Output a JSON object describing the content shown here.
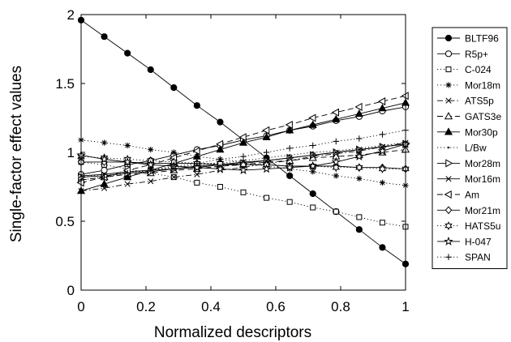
{
  "chart_data": {
    "type": "line",
    "title": "",
    "xlabel": "Normalized descriptors",
    "ylabel": "Single-factor effect values",
    "xlim": [
      0,
      1
    ],
    "ylim": [
      0,
      2
    ],
    "x_ticks": [
      "0",
      "0.2",
      "0.4",
      "0.6",
      "0.8",
      "1"
    ],
    "y_ticks": [
      "0",
      "0.5",
      "1",
      "1.5",
      "2"
    ],
    "grid": false,
    "legend_position": "right",
    "x": [
      0,
      0.0714,
      0.1429,
      0.2143,
      0.2857,
      0.3571,
      0.4286,
      0.5,
      0.5714,
      0.6429,
      0.7143,
      0.7857,
      0.8571,
      0.9286,
      1.0
    ],
    "series": [
      {
        "name": "BLTF96",
        "marker": "filled-circle",
        "line": "solid",
        "values": [
          1.96,
          1.84,
          1.72,
          1.6,
          1.47,
          1.34,
          1.22,
          1.09,
          0.96,
          0.83,
          0.7,
          0.57,
          0.44,
          0.31,
          0.19
        ]
      },
      {
        "name": "R5p+",
        "marker": "open-circle",
        "line": "solid",
        "values": [
          0.84,
          0.87,
          0.91,
          0.94,
          0.98,
          1.02,
          1.05,
          1.09,
          1.12,
          1.16,
          1.19,
          1.23,
          1.26,
          1.3,
          1.33
        ]
      },
      {
        "name": "C-024",
        "marker": "open-square",
        "line": "dotted",
        "values": [
          0.93,
          0.91,
          0.88,
          0.85,
          0.82,
          0.78,
          0.75,
          0.71,
          0.67,
          0.64,
          0.6,
          0.57,
          0.53,
          0.49,
          0.46
        ]
      },
      {
        "name": "Mor18m",
        "marker": "asterisk",
        "line": "dotted",
        "values": [
          1.09,
          1.07,
          1.05,
          1.02,
          1.0,
          0.97,
          0.95,
          0.93,
          0.9,
          0.88,
          0.86,
          0.83,
          0.81,
          0.78,
          0.76
        ]
      },
      {
        "name": "ATS5p",
        "marker": "x",
        "line": "dashdot",
        "values": [
          0.72,
          0.74,
          0.77,
          0.79,
          0.82,
          0.84,
          0.87,
          0.89,
          0.92,
          0.94,
          0.97,
          0.99,
          1.01,
          1.04,
          1.07
        ]
      },
      {
        "name": "GATS3e",
        "marker": "open-triangle-up",
        "line": "dashed",
        "values": [
          0.8,
          0.82,
          0.84,
          0.85,
          0.87,
          0.88,
          0.9,
          0.91,
          0.93,
          0.94,
          0.96,
          0.97,
          0.98,
          1.0,
          1.02
        ]
      },
      {
        "name": "Mor30p",
        "marker": "filled-triangle-up",
        "line": "solid",
        "values": [
          0.72,
          0.77,
          0.82,
          0.87,
          0.92,
          0.97,
          1.02,
          1.07,
          1.11,
          1.16,
          1.2,
          1.24,
          1.28,
          1.32,
          1.36
        ]
      },
      {
        "name": "L/Bw",
        "marker": "dot",
        "line": "dotted",
        "values": [
          0.82,
          0.84,
          0.86,
          0.87,
          0.89,
          0.91,
          0.92,
          0.94,
          0.96,
          0.98,
          1.0,
          1.01,
          1.03,
          1.05,
          1.07
        ]
      },
      {
        "name": "Mor28m",
        "marker": "open-triangle-right",
        "line": "solid",
        "values": [
          0.82,
          0.83,
          0.85,
          0.86,
          0.88,
          0.89,
          0.91,
          0.92,
          0.94,
          0.96,
          0.98,
          1.0,
          1.02,
          1.04,
          1.06
        ]
      },
      {
        "name": "Mor16m",
        "marker": "x",
        "line": "solid",
        "values": [
          0.83,
          0.84,
          0.86,
          0.87,
          0.88,
          0.9,
          0.91,
          0.93,
          0.94,
          0.96,
          0.98,
          1.0,
          1.02,
          1.04,
          1.06
        ]
      },
      {
        "name": "Am",
        "marker": "open-triangle-left",
        "line": "dashed",
        "values": [
          0.78,
          0.82,
          0.87,
          0.91,
          0.96,
          1.01,
          1.06,
          1.11,
          1.16,
          1.2,
          1.25,
          1.29,
          1.33,
          1.37,
          1.41
        ]
      },
      {
        "name": "Mor21m",
        "marker": "open-diamond",
        "line": "solid",
        "values": [
          0.93,
          0.93,
          0.93,
          0.92,
          0.92,
          0.92,
          0.91,
          0.91,
          0.91,
          0.9,
          0.9,
          0.9,
          0.89,
          0.89,
          0.88
        ]
      },
      {
        "name": "HATS5u",
        "marker": "hexagram",
        "line": "dotted",
        "values": [
          0.97,
          0.96,
          0.95,
          0.94,
          0.93,
          0.92,
          0.92,
          0.91,
          0.91,
          0.9,
          0.9,
          0.89,
          0.89,
          0.88,
          0.88
        ]
      },
      {
        "name": "H-047",
        "marker": "pentagram",
        "line": "solid",
        "values": [
          0.98,
          0.95,
          0.93,
          0.91,
          0.9,
          0.89,
          0.88,
          0.87,
          0.88,
          0.89,
          0.9,
          0.93,
          0.97,
          1.01,
          1.06
        ]
      },
      {
        "name": "SPAN",
        "marker": "plus",
        "line": "dotted",
        "values": [
          0.8,
          0.82,
          0.85,
          0.87,
          0.9,
          0.92,
          0.95,
          0.97,
          1.0,
          1.03,
          1.05,
          1.08,
          1.1,
          1.13,
          1.16
        ]
      }
    ]
  }
}
